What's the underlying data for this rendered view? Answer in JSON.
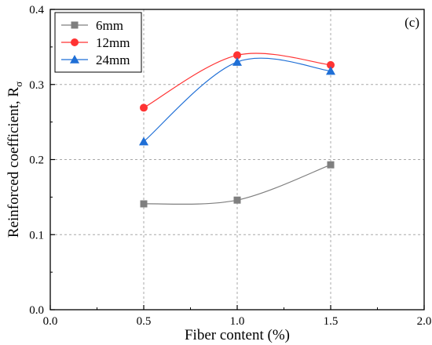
{
  "chart_data": {
    "type": "line",
    "panel_label": "(c)",
    "xlabel": "Fiber content (%)",
    "ylabel": "Reinforced coefficient, R",
    "ylabel_subscript": "σ",
    "xlim": [
      0.0,
      2.0
    ],
    "ylim": [
      0.0,
      0.4
    ],
    "x_ticks": [
      "0.0",
      "0.5",
      "1.0",
      "1.5",
      "2.0"
    ],
    "y_ticks": [
      "0.0",
      "0.1",
      "0.2",
      "0.3",
      "0.4"
    ],
    "grid": true,
    "legend_position": "top-left",
    "x": [
      0.5,
      1.0,
      1.5
    ],
    "series": [
      {
        "name": "6mm",
        "marker": "square",
        "color": "#7f7f7f",
        "values": [
          0.141,
          0.146,
          0.193
        ]
      },
      {
        "name": "12mm",
        "marker": "circle",
        "color": "#ff3333",
        "values": [
          0.269,
          0.339,
          0.326
        ]
      },
      {
        "name": "24mm",
        "marker": "triangle",
        "color": "#1f6fd6",
        "values": [
          0.224,
          0.33,
          0.318
        ]
      }
    ]
  }
}
